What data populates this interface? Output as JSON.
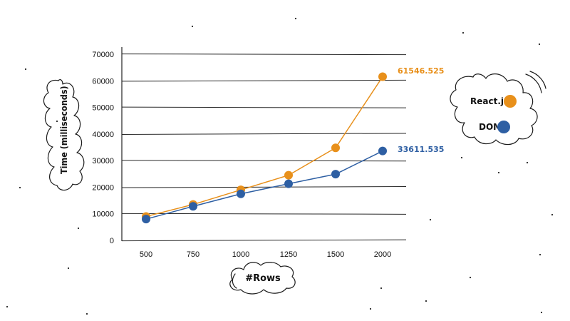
{
  "chart_data": {
    "type": "line",
    "categories": [
      "500",
      "750",
      "1000",
      "1250",
      "1500",
      "2000"
    ],
    "series": [
      {
        "name": "React.js",
        "color": "#E8901B",
        "values": [
          9000,
          13500,
          19000,
          24500,
          34800,
          61546.525
        ],
        "end_label": "61546.525"
      },
      {
        "name": "DOM",
        "color": "#2E5FA3",
        "values": [
          8000,
          12800,
          17500,
          21300,
          24900,
          33611.535
        ],
        "end_label": "33611.535"
      }
    ],
    "yticks": [
      "0",
      "10000",
      "20000",
      "30000",
      "40000",
      "50000",
      "60000",
      "70000"
    ],
    "ylim": [
      0,
      70000
    ],
    "xlabel": "#Rows",
    "ylabel": "Time (milliseconds)",
    "grid": true,
    "legend_position": "right"
  }
}
